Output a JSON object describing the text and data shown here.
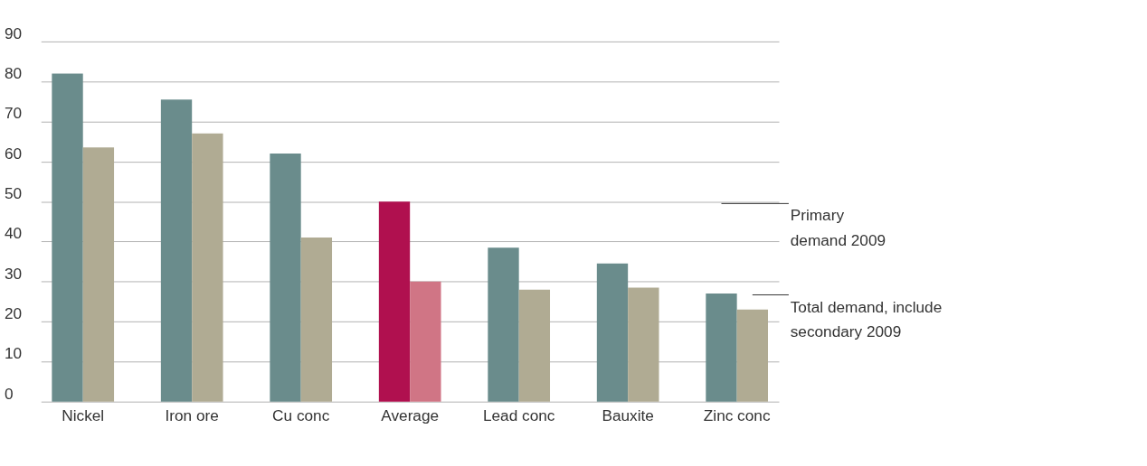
{
  "chart_data": {
    "type": "bar",
    "categories": [
      "Nickel",
      "Iron ore",
      "Cu conc",
      "Average",
      "Lead conc",
      "Bauxite",
      "Zinc conc"
    ],
    "series": [
      {
        "name": "Primary demand 2009",
        "colors": [
          "#6a8c8c",
          "#6a8c8c",
          "#6a8c8c",
          "#b0104f",
          "#6a8c8c",
          "#6a8c8c",
          "#6a8c8c"
        ],
        "values": [
          82,
          75.5,
          62,
          50,
          38.5,
          34.5,
          27
        ]
      },
      {
        "name": "Total demand, include secondary 2009",
        "colors": [
          "#b0ab93",
          "#b0ab93",
          "#b0ab93",
          "#d07585",
          "#b0ab93",
          "#b0ab93",
          "#b0ab93"
        ],
        "values": [
          63.5,
          67,
          41,
          30,
          28,
          28.5,
          23
        ]
      }
    ],
    "ylim": [
      0,
      90
    ],
    "yticks": [
      0,
      10,
      20,
      30,
      40,
      50,
      60,
      70,
      80,
      90
    ],
    "grid": "y",
    "legend": false
  }
}
